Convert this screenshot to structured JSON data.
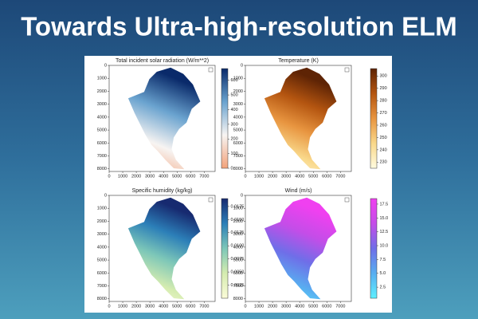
{
  "title": "Towards Ultra-high-resolution ELM",
  "panels": [
    {
      "title": "Total incident solar radiation (W/m**2)",
      "xticks": [
        0,
        1000,
        2000,
        3000,
        4000,
        5000,
        6000,
        7000
      ],
      "xlim": [
        0,
        7800
      ],
      "yticks": [
        0,
        1000,
        2000,
        3000,
        4000,
        5000,
        6000,
        7000,
        8000
      ],
      "ylim": [
        0,
        8200
      ],
      "clim": [
        0,
        680
      ],
      "cticks": [
        0,
        100,
        200,
        300,
        400,
        500,
        600
      ],
      "colors": [
        "#f2a27a",
        "#f7f4f2",
        "#6aa3cf",
        "#0a2a6a"
      ]
    },
    {
      "title": "Temperature (K)",
      "xticks": [
        0,
        1000,
        2000,
        3000,
        4000,
        5000,
        6000,
        7000
      ],
      "xlim": [
        0,
        7800
      ],
      "yticks": [
        0,
        1000,
        2000,
        3000,
        4000,
        5000,
        6000,
        7000,
        8000
      ],
      "ylim": [
        0,
        8200
      ],
      "clim": [
        225,
        306
      ],
      "cticks": [
        230,
        240,
        250,
        260,
        270,
        280,
        290,
        300
      ],
      "colors": [
        "#fffbe0",
        "#f9d88a",
        "#e89540",
        "#b45510",
        "#5e2405"
      ]
    },
    {
      "title": "Specific humidity (kg/kg)",
      "xticks": [
        0,
        1000,
        2000,
        3000,
        4000,
        5000,
        6000,
        7000
      ],
      "xlim": [
        0,
        7800
      ],
      "yticks": [
        0,
        1000,
        2000,
        3000,
        4000,
        5000,
        6000,
        7000,
        8000
      ],
      "ylim": [
        0,
        8200
      ],
      "clim": [
        0,
        0.019
      ],
      "cticks": [
        0.0025,
        {
          "value": 0.005,
          "label": "0.0050"
        },
        0.0075,
        {
          "value": 0.01,
          "label": "0.0100"
        },
        0.0125,
        {
          "value": 0.015,
          "label": "0.0150"
        },
        0.0175
      ],
      "colors": [
        "#fbfbd8",
        "#d5ecb0",
        "#7dc7b8",
        "#2c7fb8",
        "#172a70"
      ]
    },
    {
      "title": "Wind (m/s)",
      "xticks": [
        0,
        1000,
        2000,
        3000,
        4000,
        5000,
        6000,
        7000
      ],
      "xlim": [
        0,
        7800
      ],
      "yticks": [
        0,
        1000,
        2000,
        3000,
        4000,
        5000,
        6000,
        7000,
        8000
      ],
      "ylim": [
        0,
        8200
      ],
      "clim": [
        0.5,
        18.5
      ],
      "cticks": [
        {
          "value": 2.5,
          "label": "2.5"
        },
        {
          "value": 5,
          "label": "5.0"
        },
        {
          "value": 7.5,
          "label": "7.5"
        },
        {
          "value": 10,
          "label": "10.0"
        },
        {
          "value": 12.5,
          "label": "12.5"
        },
        {
          "value": 15,
          "label": "15.0"
        },
        {
          "value": 17.5,
          "label": "17.5"
        }
      ],
      "colors": [
        "#5ff0ff",
        "#58aef0",
        "#6f6ee8",
        "#c44de8",
        "#f040f0"
      ]
    }
  ]
}
